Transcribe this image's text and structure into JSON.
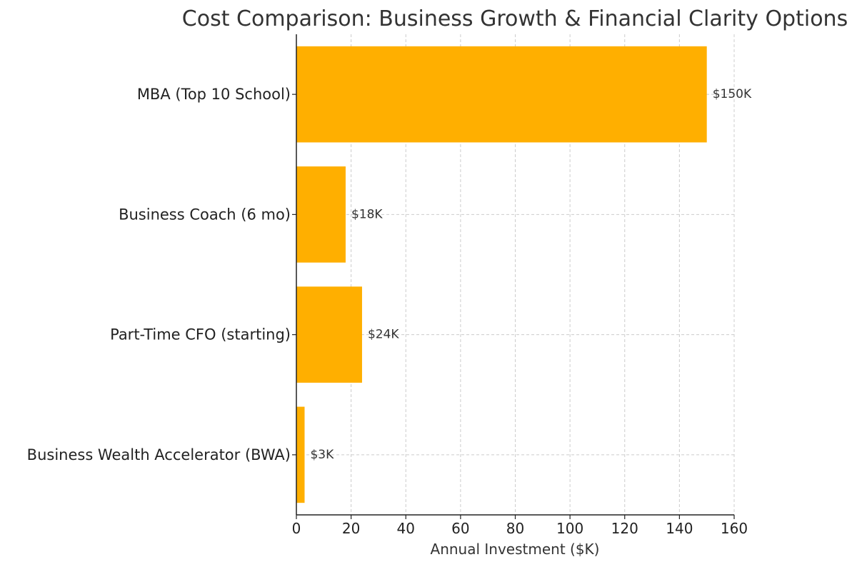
{
  "chart_data": {
    "type": "bar",
    "orientation": "horizontal",
    "title": "Cost Comparison: Business Growth & Financial Clarity Options",
    "xlabel": "Annual Investment ($K)",
    "ylabel": "",
    "categories": [
      "MBA (Top 10 School)",
      "Business Coach (6 mo)",
      "Part-Time CFO (starting)",
      "Business Wealth Accelerator (BWA)"
    ],
    "values": [
      150,
      18,
      24,
      3
    ],
    "data_labels": [
      "$150K",
      "$18K",
      "$24K",
      "$3K"
    ],
    "xlim": [
      0,
      160
    ],
    "xticks": [
      0,
      20,
      40,
      60,
      80,
      100,
      120,
      140,
      160
    ],
    "grid": true,
    "bar_color": "#ffaf00",
    "gridline_color": "#cccccc"
  }
}
